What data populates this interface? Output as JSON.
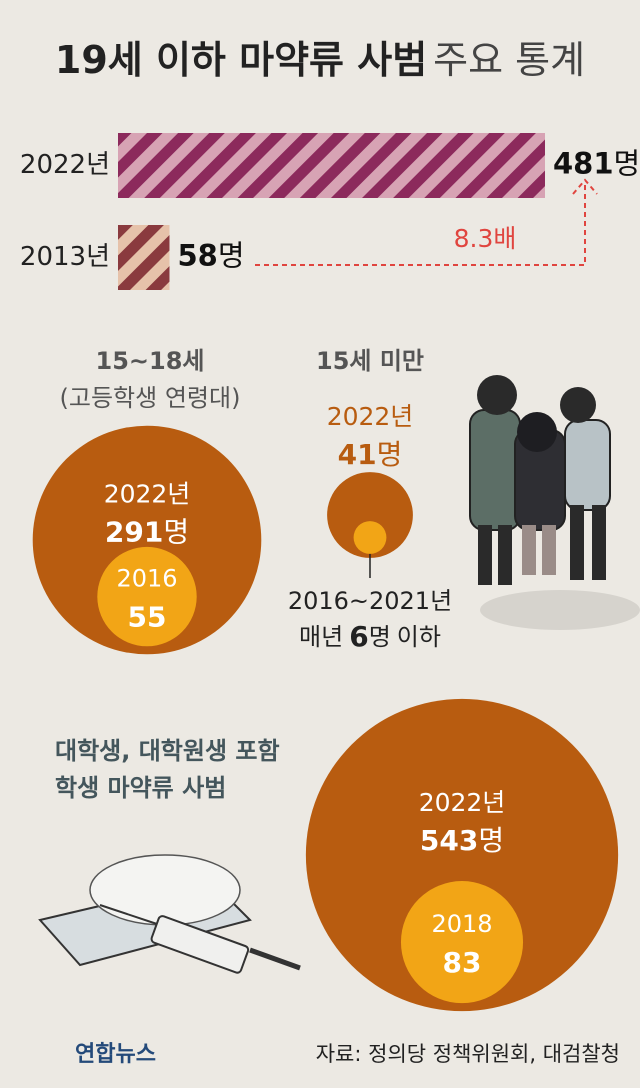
{
  "title": {
    "bold": "19세 이하 마약류 사범",
    "light": "주요 통계"
  },
  "top_bars": {
    "unit": "명",
    "ratio_label": "8.3배",
    "bars": [
      {
        "year": "2022년",
        "value": 481,
        "colors": [
          "#8c2a5c",
          "#d7a3b4"
        ]
      },
      {
        "year": "2013년",
        "value": 58,
        "colors": [
          "#8a3a3e",
          "#e6c2aa"
        ]
      }
    ]
  },
  "groups": [
    {
      "title_lines": [
        "15~18세",
        "(고등학생 연령대)"
      ],
      "outer": {
        "year": "2022년",
        "value": 291,
        "unit": "명"
      },
      "inner": {
        "year": "2016",
        "value": 55
      }
    },
    {
      "title_lines": [
        "15세 미만"
      ],
      "outer": {
        "year": "2022년",
        "value": 41,
        "unit": "명"
      },
      "inner": {
        "period": "2016~2021년",
        "prefix": "매년",
        "value": 6,
        "unit": "명",
        "suffix": "이하"
      }
    },
    {
      "title_lines": [
        "대학생, 대학원생 포함",
        "학생 마약류 사범"
      ],
      "outer": {
        "year": "2022년",
        "value": 543,
        "unit": "명"
      },
      "inner": {
        "year": "2018",
        "value": 83
      }
    }
  ],
  "logo": "연합뉴스",
  "source": "자료: 정의당 정책위원회, 대검찰청"
}
